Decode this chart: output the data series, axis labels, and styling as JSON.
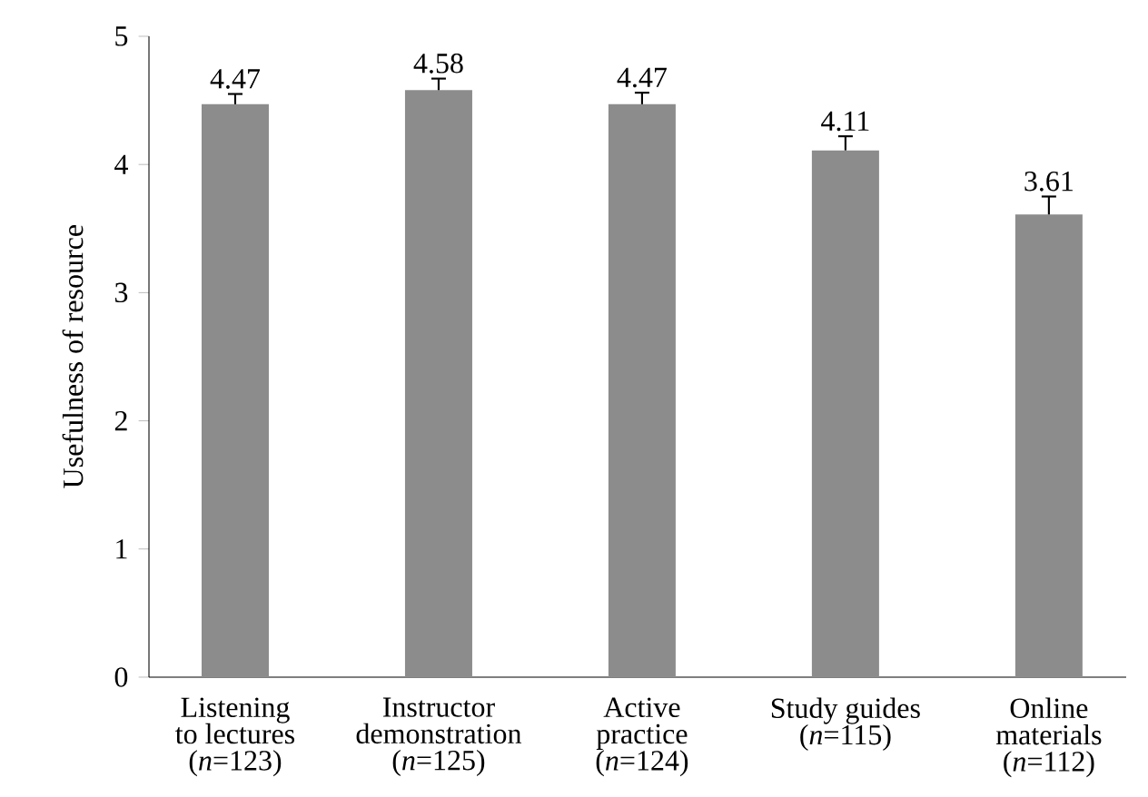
{
  "chart_data": {
    "type": "bar",
    "ylabel": "Usefulness of resource",
    "categories": [
      "Listening\nto lectures\n(*n*=123)",
      "Instructor\ndemonstration\n(*n*=125)",
      "Active\npractice\n(*n*=124)",
      "Study guides\n(*n*=115)",
      "Online\nmaterials\n(*n*=112)"
    ],
    "values": [
      4.47,
      4.58,
      4.47,
      4.11,
      3.61
    ],
    "errors": [
      [
        4.47,
        4.55
      ],
      [
        4.58,
        4.67
      ],
      [
        4.47,
        4.56
      ],
      [
        4.11,
        4.22
      ],
      [
        3.61,
        3.75
      ]
    ],
    "color": "#8c8c8c",
    "ylim": [
      0,
      5
    ],
    "yticks": [
      0,
      1,
      2,
      3,
      4,
      5
    ],
    "data_labels": true
  }
}
